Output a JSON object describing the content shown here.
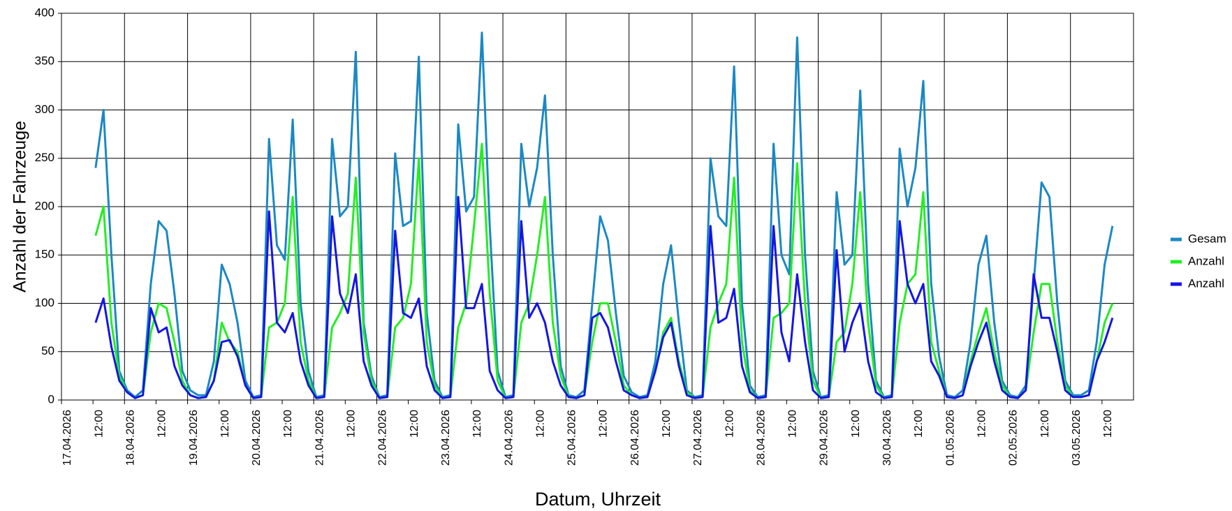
{
  "chart_data": {
    "type": "line",
    "y_label": "Anzahl der Fahrzeuge",
    "x_label": "Datum, Uhrzeit",
    "xlim": [
      0,
      408
    ],
    "ylim": [
      0,
      400
    ],
    "yticks": [
      0,
      50,
      100,
      150,
      200,
      250,
      300,
      350,
      400
    ],
    "xticks": [
      {
        "value": 0,
        "label": "17.04.2026"
      },
      {
        "value": 12,
        "label": "12:00"
      },
      {
        "value": 24,
        "label": "18.04.2026"
      },
      {
        "value": 36,
        "label": "12:00"
      },
      {
        "value": 48,
        "label": "19.04.2026"
      },
      {
        "value": 60,
        "label": "12:00"
      },
      {
        "value": 72,
        "label": "20.04.2026"
      },
      {
        "value": 84,
        "label": "12:00"
      },
      {
        "value": 96,
        "label": "21.04.2026"
      },
      {
        "value": 108,
        "label": "12:00"
      },
      {
        "value": 120,
        "label": "22.04.2026"
      },
      {
        "value": 132,
        "label": "12:00"
      },
      {
        "value": 144,
        "label": "23.04.2026"
      },
      {
        "value": 156,
        "label": "12:00"
      },
      {
        "value": 168,
        "label": "24.04.2026"
      },
      {
        "value": 180,
        "label": "12:00"
      },
      {
        "value": 192,
        "label": "25.04.2026"
      },
      {
        "value": 204,
        "label": "12:00"
      },
      {
        "value": 216,
        "label": "26.04.2026"
      },
      {
        "value": 228,
        "label": "12:00"
      },
      {
        "value": 240,
        "label": "27.04.2026"
      },
      {
        "value": 252,
        "label": "12:00"
      },
      {
        "value": 264,
        "label": "28.04.2026"
      },
      {
        "value": 276,
        "label": "12:00"
      },
      {
        "value": 288,
        "label": "29.04.2026"
      },
      {
        "value": 300,
        "label": "12:00"
      },
      {
        "value": 312,
        "label": "30.04.2026"
      },
      {
        "value": 324,
        "label": "12:00"
      },
      {
        "value": 336,
        "label": "01.05.2026"
      },
      {
        "value": 348,
        "label": "12:00"
      },
      {
        "value": 360,
        "label": "02.05.2026"
      },
      {
        "value": 372,
        "label": "12:00"
      },
      {
        "value": 384,
        "label": "03.05.2026"
      },
      {
        "value": 396,
        "label": "12:00"
      }
    ],
    "grid": true,
    "legend": "right",
    "x": [
      13,
      16,
      19,
      22,
      25,
      28,
      31,
      34,
      37,
      40,
      43,
      46,
      49,
      52,
      55,
      58,
      61,
      64,
      67,
      70,
      73,
      76,
      79,
      82,
      85,
      88,
      91,
      94,
      97,
      100,
      103,
      106,
      109,
      112,
      115,
      118,
      121,
      124,
      127,
      130,
      133,
      136,
      139,
      142,
      145,
      148,
      151,
      154,
      157,
      160,
      163,
      166,
      169,
      172,
      175,
      178,
      181,
      184,
      187,
      190,
      193,
      196,
      199,
      202,
      205,
      208,
      211,
      214,
      217,
      220,
      223,
      226,
      229,
      232,
      235,
      238,
      241,
      244,
      247,
      250,
      253,
      256,
      259,
      262,
      265,
      268,
      271,
      274,
      277,
      280,
      283,
      286,
      289,
      292,
      295,
      298,
      301,
      304,
      307,
      310,
      313,
      316,
      319,
      322,
      325,
      328,
      331,
      334,
      337,
      340,
      343,
      346,
      349,
      352,
      355,
      358,
      361,
      364,
      367,
      370,
      373,
      376,
      379,
      382,
      385,
      388,
      391,
      394,
      397,
      400
    ],
    "series": [
      {
        "name": "Gesam",
        "color": "#1b88c4",
        "values": [
          240,
          300,
          150,
          30,
          10,
          3,
          10,
          120,
          185,
          175,
          110,
          30,
          10,
          5,
          5,
          40,
          140,
          120,
          80,
          20,
          3,
          5,
          270,
          160,
          145,
          290,
          100,
          30,
          3,
          5,
          270,
          190,
          200,
          360,
          80,
          25,
          3,
          5,
          255,
          180,
          185,
          355,
          90,
          20,
          3,
          5,
          285,
          195,
          210,
          380,
          180,
          30,
          3,
          5,
          265,
          200,
          240,
          315,
          150,
          35,
          5,
          3,
          10,
          100,
          190,
          165,
          90,
          25,
          8,
          3,
          5,
          40,
          120,
          160,
          80,
          10,
          3,
          5,
          250,
          190,
          180,
          345,
          100,
          15,
          3,
          5,
          265,
          150,
          130,
          375,
          150,
          30,
          3,
          5,
          215,
          140,
          150,
          320,
          120,
          20,
          3,
          5,
          260,
          200,
          240,
          330,
          120,
          45,
          5,
          3,
          10,
          60,
          140,
          170,
          80,
          20,
          5,
          3,
          15,
          120,
          225,
          210,
          100,
          20,
          5,
          5,
          10,
          60,
          140,
          180
        ]
      },
      {
        "name": "Anzahl",
        "color": "#22ee22",
        "values": [
          170,
          200,
          80,
          25,
          8,
          2,
          5,
          70,
          100,
          95,
          60,
          20,
          5,
          2,
          3,
          20,
          80,
          60,
          50,
          15,
          2,
          3,
          75,
          80,
          100,
          210,
          60,
          20,
          2,
          3,
          75,
          90,
          110,
          230,
          70,
          20,
          2,
          3,
          75,
          85,
          120,
          250,
          60,
          15,
          2,
          3,
          75,
          100,
          180,
          265,
          110,
          20,
          2,
          3,
          80,
          100,
          150,
          210,
          80,
          25,
          3,
          2,
          5,
          60,
          100,
          100,
          60,
          15,
          5,
          2,
          3,
          30,
          70,
          85,
          40,
          8,
          2,
          3,
          75,
          100,
          120,
          230,
          60,
          10,
          2,
          3,
          85,
          90,
          100,
          245,
          100,
          20,
          2,
          3,
          60,
          70,
          120,
          215,
          80,
          15,
          2,
          3,
          80,
          120,
          130,
          215,
          60,
          30,
          3,
          2,
          5,
          40,
          70,
          95,
          50,
          15,
          3,
          2,
          10,
          70,
          120,
          120,
          60,
          15,
          3,
          3,
          5,
          40,
          80,
          100
        ]
      },
      {
        "name": "Anzahl",
        "color": "#1515e6",
        "values": [
          80,
          105,
          55,
          20,
          8,
          2,
          5,
          95,
          70,
          75,
          35,
          15,
          5,
          2,
          3,
          20,
          60,
          62,
          45,
          15,
          2,
          3,
          195,
          80,
          70,
          90,
          40,
          15,
          2,
          3,
          190,
          110,
          90,
          130,
          40,
          15,
          2,
          3,
          175,
          90,
          85,
          105,
          35,
          10,
          2,
          3,
          210,
          95,
          95,
          120,
          30,
          10,
          2,
          3,
          185,
          85,
          100,
          80,
          40,
          15,
          3,
          2,
          5,
          85,
          90,
          75,
          40,
          10,
          5,
          2,
          3,
          30,
          65,
          80,
          35,
          5,
          2,
          3,
          180,
          80,
          85,
          115,
          35,
          8,
          2,
          3,
          180,
          70,
          40,
          130,
          60,
          10,
          2,
          3,
          155,
          50,
          80,
          100,
          40,
          8,
          2,
          3,
          185,
          120,
          100,
          120,
          40,
          25,
          3,
          2,
          5,
          35,
          60,
          80,
          40,
          10,
          3,
          2,
          10,
          130,
          85,
          85,
          50,
          10,
          3,
          3,
          5,
          40,
          60,
          85
        ]
      }
    ]
  }
}
